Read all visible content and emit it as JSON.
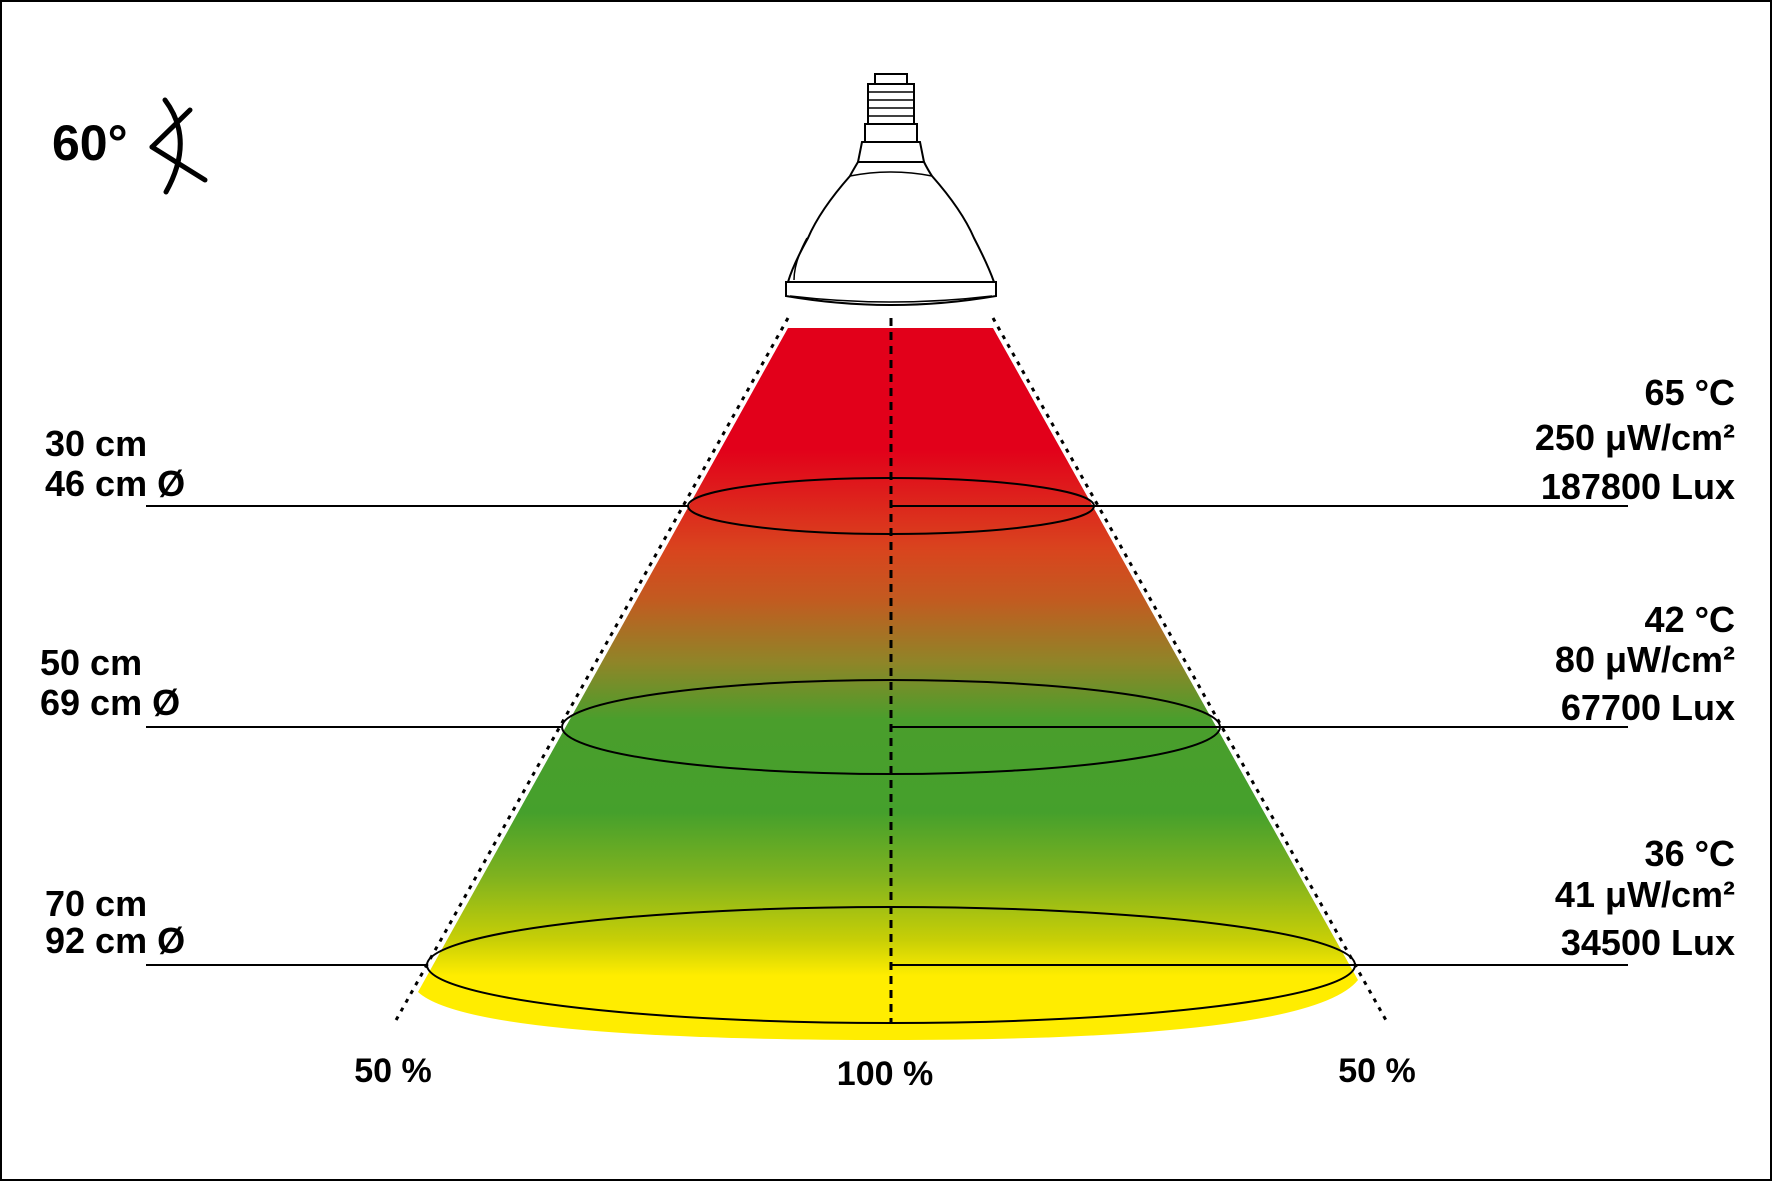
{
  "beam_angle": {
    "value": "60°",
    "icon": "beam-angle-icon"
  },
  "distances": [
    {
      "distance": "30 cm",
      "diameter": "46 cm Ø",
      "temperature": "65 °C",
      "uv": "250 μW/cm²",
      "lux": "187800 Lux"
    },
    {
      "distance": "50 cm",
      "diameter": "69 cm Ø",
      "temperature": "42 °C",
      "uv": "80 μW/cm²",
      "lux": "67700 Lux"
    },
    {
      "distance": "70 cm",
      "diameter": "92 cm Ø",
      "temperature": "36 °C",
      "uv": "41 μW/cm²",
      "lux": "34500 Lux"
    }
  ],
  "intensity": {
    "left": "50 %",
    "center": "100 %",
    "right": "50 %"
  },
  "colors": {
    "hot": "#e2001a",
    "warm": "#d9441e",
    "mid": "#4a9e2c",
    "cool": "#ffed00",
    "line": "#000000"
  }
}
